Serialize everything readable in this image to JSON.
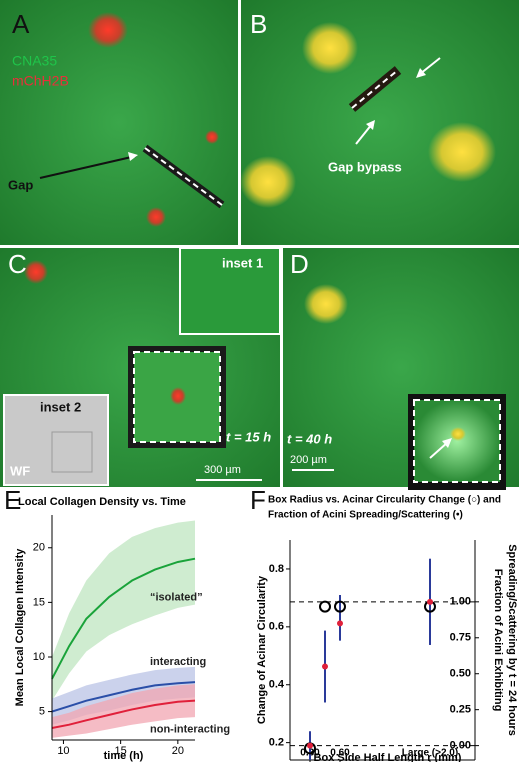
{
  "panels": {
    "A": {
      "label": "A",
      "legend": [
        "CNA35",
        "mChH2B"
      ],
      "annotation": "Gap"
    },
    "B": {
      "label": "B",
      "annotation": "Gap bypass"
    },
    "C": {
      "label": "C",
      "insets": [
        "inset 1",
        "inset 2"
      ],
      "mode": "WF",
      "time": "t = 15 h",
      "scale": "300 µm"
    },
    "D": {
      "label": "D",
      "time": "t = 40 h",
      "scale": "200 µm"
    },
    "E": {
      "label": "E"
    },
    "F": {
      "label": "F"
    }
  },
  "chart_data": [
    {
      "type": "line",
      "title": "Local Collagen Density vs. Time",
      "xlabel": "time (h)",
      "ylabel": "Mean Local Collagen Intensity",
      "x": [
        9,
        10.5,
        12,
        14,
        16,
        18,
        20,
        21.5
      ],
      "xlim": [
        9,
        21.5
      ],
      "xticks": [
        10,
        15,
        20
      ],
      "ylim": [
        2.4,
        23
      ],
      "yticks": [
        5,
        10,
        15,
        20
      ],
      "series": [
        {
          "name": "“isolated”",
          "color": "#1aa33a",
          "band_color": "#bfe6c0",
          "values": [
            8,
            11,
            13.5,
            15.5,
            17,
            18,
            18.7,
            19
          ],
          "lower": [
            6,
            8.5,
            10.5,
            12,
            13,
            13.8,
            14.5,
            14.8
          ],
          "upper": [
            10,
            14,
            17,
            19.5,
            21,
            21.8,
            22.3,
            22.5
          ]
        },
        {
          "name": "interacting",
          "color": "#2a4fa8",
          "band_color": "#b9c3e6",
          "values": [
            5,
            5.5,
            6,
            6.5,
            7,
            7.4,
            7.6,
            7.7
          ],
          "lower": [
            3.8,
            4.2,
            4.7,
            5.1,
            5.6,
            6,
            6.2,
            6.3
          ],
          "upper": [
            6.2,
            6.8,
            7.4,
            7.9,
            8.4,
            8.8,
            9,
            9.1
          ]
        },
        {
          "name": "non-interacting",
          "color": "#e0203a",
          "band_color": "#f2a6b2",
          "values": [
            3.5,
            3.8,
            4.2,
            4.7,
            5.2,
            5.6,
            5.9,
            6
          ],
          "lower": [
            2.6,
            2.8,
            3,
            3.4,
            3.8,
            4.1,
            4.4,
            4.5
          ],
          "upper": [
            4.5,
            4.9,
            5.5,
            6.1,
            6.7,
            7.1,
            7.4,
            7.5
          ]
        }
      ]
    },
    {
      "type": "scatter",
      "title": [
        "Box Radius vs. Acinar Circularity Change (○) and",
        "Fraction of Acini Spreading/Scattering (•)"
      ],
      "xlabel": "Box Side Half Length r (mm)",
      "ylabel": "Change of Acinar Circularity",
      "y2label": [
        "Fraction of Acini Exhibiting",
        "Spreading/Scattering by t = 24 hours"
      ],
      "x": [
        0.3,
        0.45,
        0.6,
        1.5
      ],
      "xlim": [
        0.1,
        1.95
      ],
      "xticks": [
        {
          "value": 0.3,
          "label": "0.30"
        },
        {
          "value": 0.6,
          "label": "0.60"
        },
        {
          "value": 1.5,
          "label": "Large (>2.0)"
        }
      ],
      "ylim": [
        0.14,
        0.9
      ],
      "yticks": [
        0.2,
        0.4,
        0.6,
        0.8
      ],
      "y2lim": [
        -0.1,
        1.43
      ],
      "y2ticks": [
        {
          "value": 0,
          "label": "0.00"
        },
        {
          "value": 0.25,
          "label": "0.25"
        },
        {
          "value": 0.5,
          "label": "0.50"
        },
        {
          "value": 0.75,
          "label": "0.75"
        },
        {
          "value": 1,
          "label": "1.00"
        }
      ],
      "reference_lines": [
        1,
        0
      ],
      "series": [
        {
          "color": "#000000",
          "marker": "open",
          "values": [
            0.18,
            0.67,
            0.67,
            0.67
          ],
          "errors": [
            0.03,
            0,
            0.04,
            0.1
          ]
        },
        {
          "color": "#e0203a",
          "marker": "filled",
          "axis": "y2",
          "values": [
            0,
            0.55,
            0.85,
            1
          ],
          "errors": [
            0.1,
            0.25,
            0.12,
            0.3
          ]
        }
      ]
    }
  ]
}
